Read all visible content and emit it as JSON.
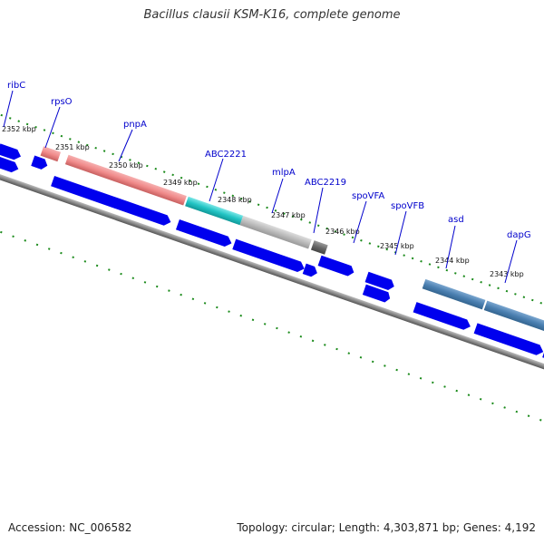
{
  "title": "Bacillus clausii KSM-K16, complete genome",
  "footer": {
    "accession": "Accession: NC_006582",
    "topology": "Topology: circular; Length: 4,303,871 bp; Genes: 4,192"
  },
  "colors": {
    "cds_arrow": "#0000ee",
    "axis": "#888888",
    "tick": "#1a8a1a",
    "label": "#0000cc",
    "gene_pink": "#f08a8a",
    "gene_cyan": "#22c4c4",
    "gene_gray": "#bbbbbb",
    "gene_darkgray": "#666666",
    "gene_steel": "#4a7fb0",
    "gene_olive": "#8aa020"
  },
  "gene_labels": [
    {
      "name": "ribC"
    },
    {
      "name": "rpsO"
    },
    {
      "name": "pnpA"
    },
    {
      "name": "ABC2221"
    },
    {
      "name": "mlpA"
    },
    {
      "name": "ABC2219"
    },
    {
      "name": "spoVFA"
    },
    {
      "name": "spoVFB"
    },
    {
      "name": "asd"
    },
    {
      "name": "dapG"
    }
  ],
  "kbp_labels": [
    "2352 kbp",
    "2351 kbp",
    "2350 kbp",
    "2349 kbp",
    "2348 kbp",
    "2347 kbp",
    "2346 kbp",
    "2345 kbp",
    "2344 kbp",
    "2343 kbp"
  ]
}
